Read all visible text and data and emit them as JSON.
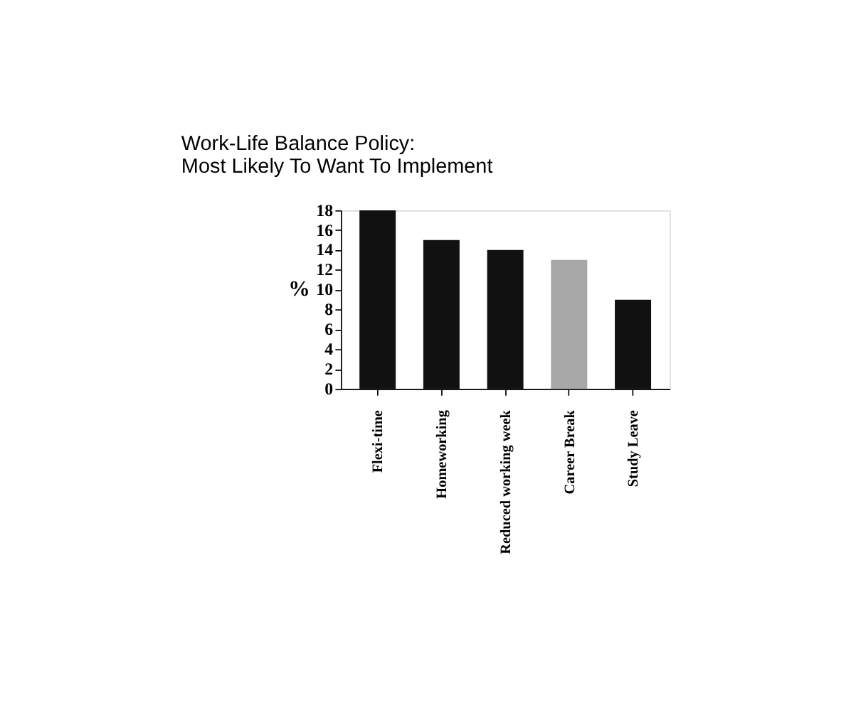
{
  "chart_data": {
    "type": "bar",
    "title": "Work-Life Balance Policy:\nMost Likely To Want To Implement",
    "ylabel": "%",
    "categories": [
      "Flexi-time",
      "Homeworking",
      "Reduced working week",
      "Career Break",
      "Study Leave"
    ],
    "values": [
      18,
      15,
      14,
      13,
      9
    ],
    "colors": [
      "#111111",
      "#111111",
      "#111111",
      "#a8a8a8",
      "#111111"
    ],
    "ylim": [
      0,
      18
    ],
    "yticks": [
      0,
      2,
      4,
      6,
      8,
      10,
      12,
      14,
      16,
      18
    ],
    "grid": false
  }
}
